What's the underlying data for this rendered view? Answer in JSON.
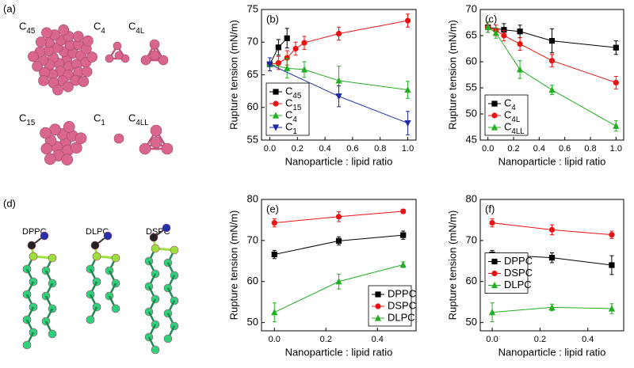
{
  "panel_a": {
    "label": "(a)",
    "molecules": [
      "C45",
      "C4",
      "C4L",
      "C15",
      "C1",
      "C4LL"
    ]
  },
  "panel_d": {
    "label": "(d)",
    "lipids": [
      "DPPC",
      "DLPC",
      "DSPC"
    ]
  },
  "chart_data": [
    {
      "type": "line",
      "panel_label": "(b)",
      "x_label": "Nanoparticle : lipid ratio",
      "y_label": "Rupture tension (mN/m)",
      "xlim": [
        -0.06,
        1.06
      ],
      "xticks": [
        {
          "value": 0,
          "label": "0.0"
        },
        {
          "value": 0.2,
          "label": "0.2"
        },
        {
          "value": 0.4,
          "label": "0.4"
        },
        {
          "value": 0.6,
          "label": "0.6"
        },
        {
          "value": 0.8,
          "label": "0.8"
        },
        {
          "value": 1,
          "label": "1.0"
        }
      ],
      "ylim": [
        55,
        75
      ],
      "yticks": [
        55,
        60,
        65,
        70,
        75
      ],
      "legend": "lower left",
      "series": [
        {
          "name": "C45",
          "color": "#000000",
          "marker": "square",
          "x": [
            0,
            0.0625,
            0.125
          ],
          "values": [
            66.6,
            69.2,
            70.6
          ],
          "errors": [
            1.0,
            1.2,
            1.5
          ]
        },
        {
          "name": "C15",
          "color": "#ee1111",
          "marker": "circle",
          "x": [
            0,
            0.0625,
            0.125,
            0.1875,
            0.25,
            0.5,
            1.0
          ],
          "values": [
            66.6,
            66.8,
            67.6,
            69.0,
            69.9,
            71.3,
            73.3
          ],
          "errors": [
            1.0,
            1.0,
            1.1,
            1.0,
            1.0,
            1.0,
            1.0
          ]
        },
        {
          "name": "C4",
          "color": "#22b022",
          "marker": "triangle-up",
          "x": [
            0,
            0.125,
            0.25,
            0.5,
            1.0
          ],
          "values": [
            66.6,
            66.0,
            65.8,
            64.1,
            62.7
          ],
          "errors": [
            1.0,
            1.5,
            1.2,
            2.2,
            1.3
          ]
        },
        {
          "name": "C1",
          "color": "#1a2aa6",
          "marker": "triangle-down",
          "x": [
            0,
            0.5,
            1.0
          ],
          "values": [
            66.6,
            61.7,
            57.6
          ],
          "errors": [
            1.0,
            1.6,
            1.8
          ]
        }
      ]
    },
    {
      "type": "line",
      "panel_label": "(c)",
      "x_label": "Nanoparticle : lipid ratio",
      "y_label": "Rupture tension (mN/m)",
      "xlim": [
        -0.06,
        1.06
      ],
      "xticks": [
        {
          "value": 0,
          "label": "0.0"
        },
        {
          "value": 0.2,
          "label": "0.2"
        },
        {
          "value": 0.4,
          "label": "0.4"
        },
        {
          "value": 0.6,
          "label": "0.6"
        },
        {
          "value": 0.8,
          "label": "0.8"
        },
        {
          "value": 1,
          "label": "1.0"
        }
      ],
      "ylim": [
        45,
        70
      ],
      "yticks": [
        45,
        50,
        55,
        60,
        65,
        70
      ],
      "legend": "lower left",
      "series": [
        {
          "name": "C4",
          "color": "#000000",
          "marker": "square",
          "x": [
            0,
            0.125,
            0.25,
            0.5,
            1.0
          ],
          "values": [
            66.6,
            66.1,
            65.8,
            64.0,
            62.7
          ],
          "errors": [
            1.0,
            1.2,
            1.2,
            2.3,
            1.3
          ]
        },
        {
          "name": "C4L",
          "color": "#ee1111",
          "marker": "circle",
          "x": [
            0,
            0.0625,
            0.125,
            0.25,
            0.5,
            1.0
          ],
          "values": [
            66.6,
            66.0,
            65.0,
            63.4,
            60.2,
            56.0
          ],
          "errors": [
            1.0,
            1.0,
            1.0,
            1.2,
            1.2,
            1.2
          ]
        },
        {
          "name": "C4LL",
          "color": "#22b022",
          "marker": "triangle-up",
          "x": [
            0,
            0.0625,
            0.25,
            0.5,
            1.0
          ],
          "values": [
            66.6,
            65.5,
            58.5,
            54.6,
            47.7
          ],
          "errors": [
            1.0,
            1.0,
            1.7,
            0.9,
            1.0
          ]
        }
      ]
    },
    {
      "type": "line",
      "panel_label": "(e)",
      "x_label": "Nanoparticle : lipid ratio",
      "y_label": "Rupture tension (mN/m)",
      "xlim": [
        -0.05,
        0.55
      ],
      "xticks": [
        {
          "value": 0,
          "label": "0.0"
        },
        {
          "value": 0.2,
          "label": "0.2"
        },
        {
          "value": 0.4,
          "label": "0.4"
        }
      ],
      "ylim": [
        48,
        80
      ],
      "yticks": [
        50,
        60,
        70,
        80
      ],
      "legend": "lower right",
      "series": [
        {
          "name": "DPPC",
          "color": "#000000",
          "marker": "square",
          "x": [
            0,
            0.25,
            0.5
          ],
          "values": [
            66.6,
            69.9,
            71.3
          ],
          "errors": [
            1.0,
            1.0,
            1.0
          ]
        },
        {
          "name": "DSPC",
          "color": "#ee1111",
          "marker": "circle",
          "x": [
            0,
            0.25,
            0.5
          ],
          "values": [
            74.3,
            75.8,
            77.1
          ],
          "errors": [
            1.0,
            1.2,
            0.5
          ]
        },
        {
          "name": "DLPC",
          "color": "#22b022",
          "marker": "triangle-up",
          "x": [
            0,
            0.25,
            0.5
          ],
          "values": [
            52.5,
            60.0,
            64.1
          ],
          "errors": [
            2.3,
            1.8,
            0.7
          ]
        }
      ]
    },
    {
      "type": "line",
      "panel_label": "(f)",
      "x_label": "Nanoparticle : lipid ratio",
      "y_label": "Rupture tension (mN/m)",
      "xlim": [
        -0.05,
        0.55
      ],
      "xticks": [
        {
          "value": 0,
          "label": "0.0"
        },
        {
          "value": 0.2,
          "label": "0.2"
        },
        {
          "value": 0.4,
          "label": "0.4"
        }
      ],
      "ylim": [
        48,
        80
      ],
      "yticks": [
        50,
        60,
        70,
        80
      ],
      "legend": "center left",
      "series": [
        {
          "name": "DPPC",
          "color": "#000000",
          "marker": "square",
          "x": [
            0,
            0.25,
            0.5
          ],
          "values": [
            66.6,
            65.8,
            64.0
          ],
          "errors": [
            1.0,
            1.2,
            2.3
          ]
        },
        {
          "name": "DSPC",
          "color": "#ee1111",
          "marker": "circle",
          "x": [
            0,
            0.25,
            0.5
          ],
          "values": [
            74.3,
            72.6,
            71.4
          ],
          "errors": [
            1.0,
            1.2,
            0.9
          ]
        },
        {
          "name": "DLPC",
          "color": "#22b022",
          "marker": "triangle-up",
          "x": [
            0,
            0.25,
            0.5
          ],
          "values": [
            52.5,
            53.7,
            53.4
          ],
          "errors": [
            2.3,
            0.8,
            1.2
          ]
        }
      ]
    }
  ]
}
